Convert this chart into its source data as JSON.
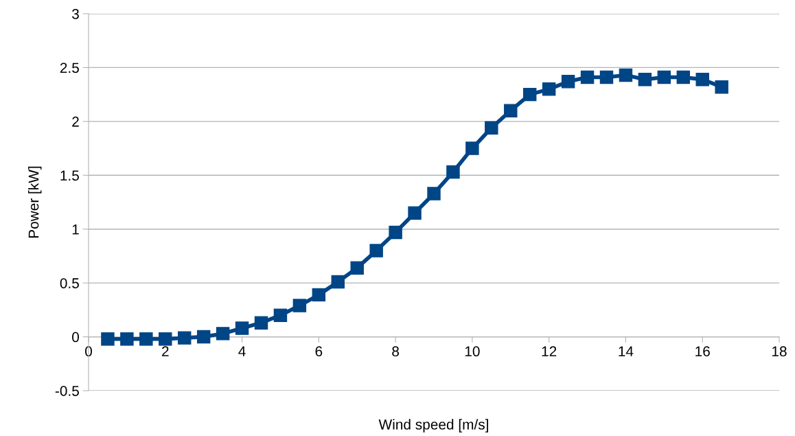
{
  "chart_data": {
    "type": "line",
    "xlabel": "Wind speed [m/s]",
    "ylabel": "Power [kW]",
    "x": [
      0.5,
      1,
      1.5,
      2,
      2.5,
      3,
      3.5,
      4,
      4.5,
      5,
      5.5,
      6,
      6.5,
      7,
      7.5,
      8,
      8.5,
      9,
      9.5,
      10,
      10.5,
      11,
      11.5,
      12,
      12.5,
      13,
      13.5,
      14,
      14.5,
      15,
      15.5,
      16,
      16.5
    ],
    "series": [
      {
        "color": "#004586",
        "values": [
          -0.02,
          -0.02,
          -0.02,
          -0.02,
          -0.01,
          0.0,
          0.03,
          0.08,
          0.13,
          0.2,
          0.29,
          0.39,
          0.51,
          0.64,
          0.8,
          0.97,
          1.15,
          1.33,
          1.53,
          1.75,
          1.94,
          2.1,
          2.25,
          2.3,
          2.37,
          2.41,
          2.41,
          2.43,
          2.39,
          2.41,
          2.41,
          2.39,
          2.32
        ]
      }
    ],
    "xlim": [
      0,
      18
    ],
    "xticks": [
      0,
      2,
      4,
      6,
      8,
      10,
      12,
      14,
      16,
      18
    ],
    "ylim": [
      -0.5,
      3
    ],
    "yticks": [
      -0.5,
      0,
      0.5,
      1,
      1.5,
      2,
      2.5,
      3
    ],
    "grid": "y",
    "marker": "square",
    "line_style": "solid",
    "legend": false
  }
}
